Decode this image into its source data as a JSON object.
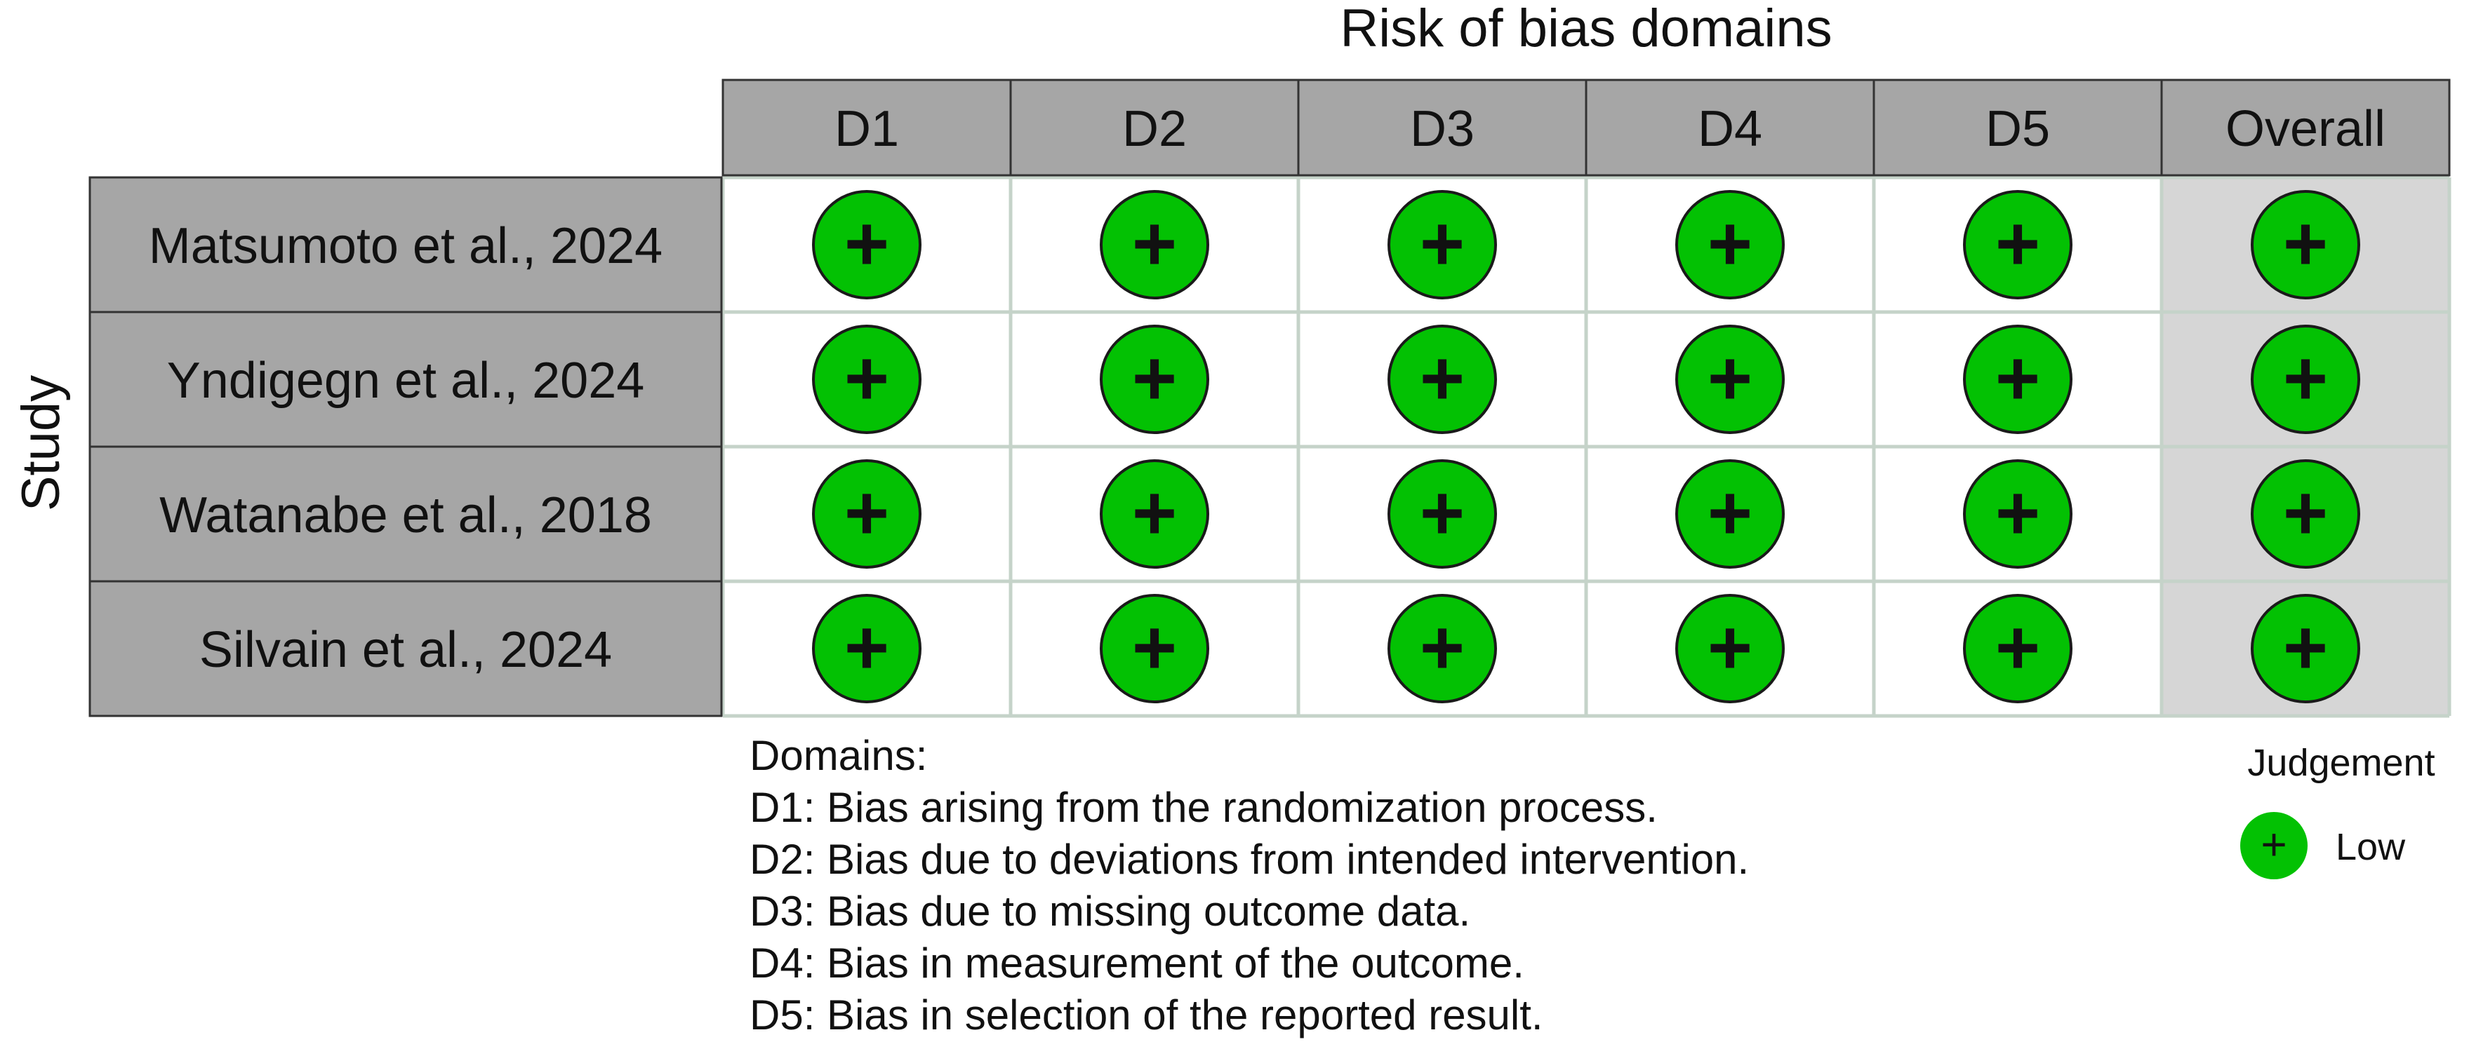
{
  "chart_data": {
    "type": "table",
    "title": "Risk of bias domains",
    "ylabel": "Study",
    "columns": [
      "D1",
      "D2",
      "D3",
      "D4",
      "D5",
      "Overall"
    ],
    "studies": [
      "Matsumoto et al., 2024",
      "Yndigegn et al., 2024",
      "Watanabe et al., 2018",
      "Silvain et al., 2024"
    ],
    "judgements": [
      [
        "+",
        "+",
        "+",
        "+",
        "+",
        "+"
      ],
      [
        "+",
        "+",
        "+",
        "+",
        "+",
        "+"
      ],
      [
        "+",
        "+",
        "+",
        "+",
        "+",
        "+"
      ],
      [
        "+",
        "+",
        "+",
        "+",
        "+",
        "+"
      ]
    ],
    "domains_heading": "Domains:",
    "domains": [
      "D1: Bias arising from the randomization process.",
      "D2: Bias due to deviations from intended intervention.",
      "D3: Bias due to missing outcome data.",
      "D4: Bias in measurement of the outcome.",
      "D5: Bias in selection of the reported result."
    ],
    "legend": {
      "title": "Judgement",
      "items": [
        {
          "symbol": "+",
          "label": "Low",
          "color": "#03c103"
        }
      ]
    },
    "colors": {
      "low": "#03c103",
      "header_fill": "#a6a6a6",
      "study_fill": "#a6a6a6",
      "overall_fill": "#d6d6d6",
      "grid_line": "#c5d3c9"
    }
  }
}
